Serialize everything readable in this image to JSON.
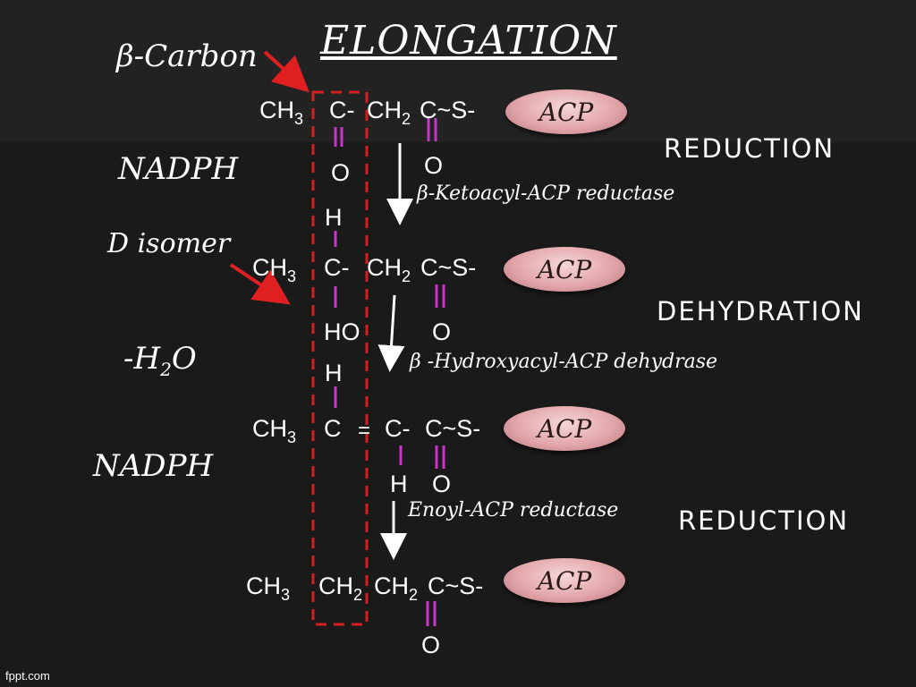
{
  "title": "ELONGATION",
  "left_labels": {
    "beta_carbon": "β-Carbon",
    "nadph_1": "NADPH",
    "d_isomer": "D isomer",
    "minus_water": "-H",
    "minus_water_sub": "2",
    "minus_water_tail": "O",
    "nadph_2": "NADPH"
  },
  "steps": {
    "reduction_1": "REDUCTION",
    "dehydration": "DEHYDRATION",
    "reduction_2": "REDUCTION"
  },
  "enzymes": {
    "ketoacyl_reductase": "β-Ketoacyl-ACP reductase",
    "hydroxyacyl_dehydrase": "β -Hydroxyacyl-ACP dehydrase",
    "enoyl_reductase": "Enoyl-ACP reductase"
  },
  "acp_label": "ACP",
  "row1": {
    "ch3": "CH",
    "ch3_sub": "3",
    "c": "C-",
    "ch2": "CH",
    "ch2_sub": "2",
    "cs": "C~S-",
    "o_left": "O",
    "o_right": "O"
  },
  "row2": {
    "h_top": "H",
    "ch3": "CH",
    "ch3_sub": "3",
    "c": "C-",
    "ch2": "CH",
    "ch2_sub": "2",
    "cs": "C~S-",
    "ho": "HO",
    "o_right": "O"
  },
  "row3": {
    "h_top": "H",
    "ch3": "CH",
    "ch3_sub": "3",
    "c": "C",
    "eq": "=",
    "c2": "C-",
    "cs": "C~S-",
    "h_bottom": "H",
    "o_right": "O"
  },
  "row4": {
    "ch3": "CH",
    "ch3_sub": "3",
    "ch2a": "CH",
    "ch2a_sub": "2",
    "ch2b": "CH",
    "ch2b_sub": "2",
    "cs": "C~S-",
    "o_right": "O"
  },
  "footer": "fppt.com",
  "colors": {
    "background": "#1a1a1a",
    "bond": "#cc33cc",
    "arrow_red": "#e02020",
    "box_red": "#d42020",
    "acp_pill": "#e3a7ab"
  }
}
